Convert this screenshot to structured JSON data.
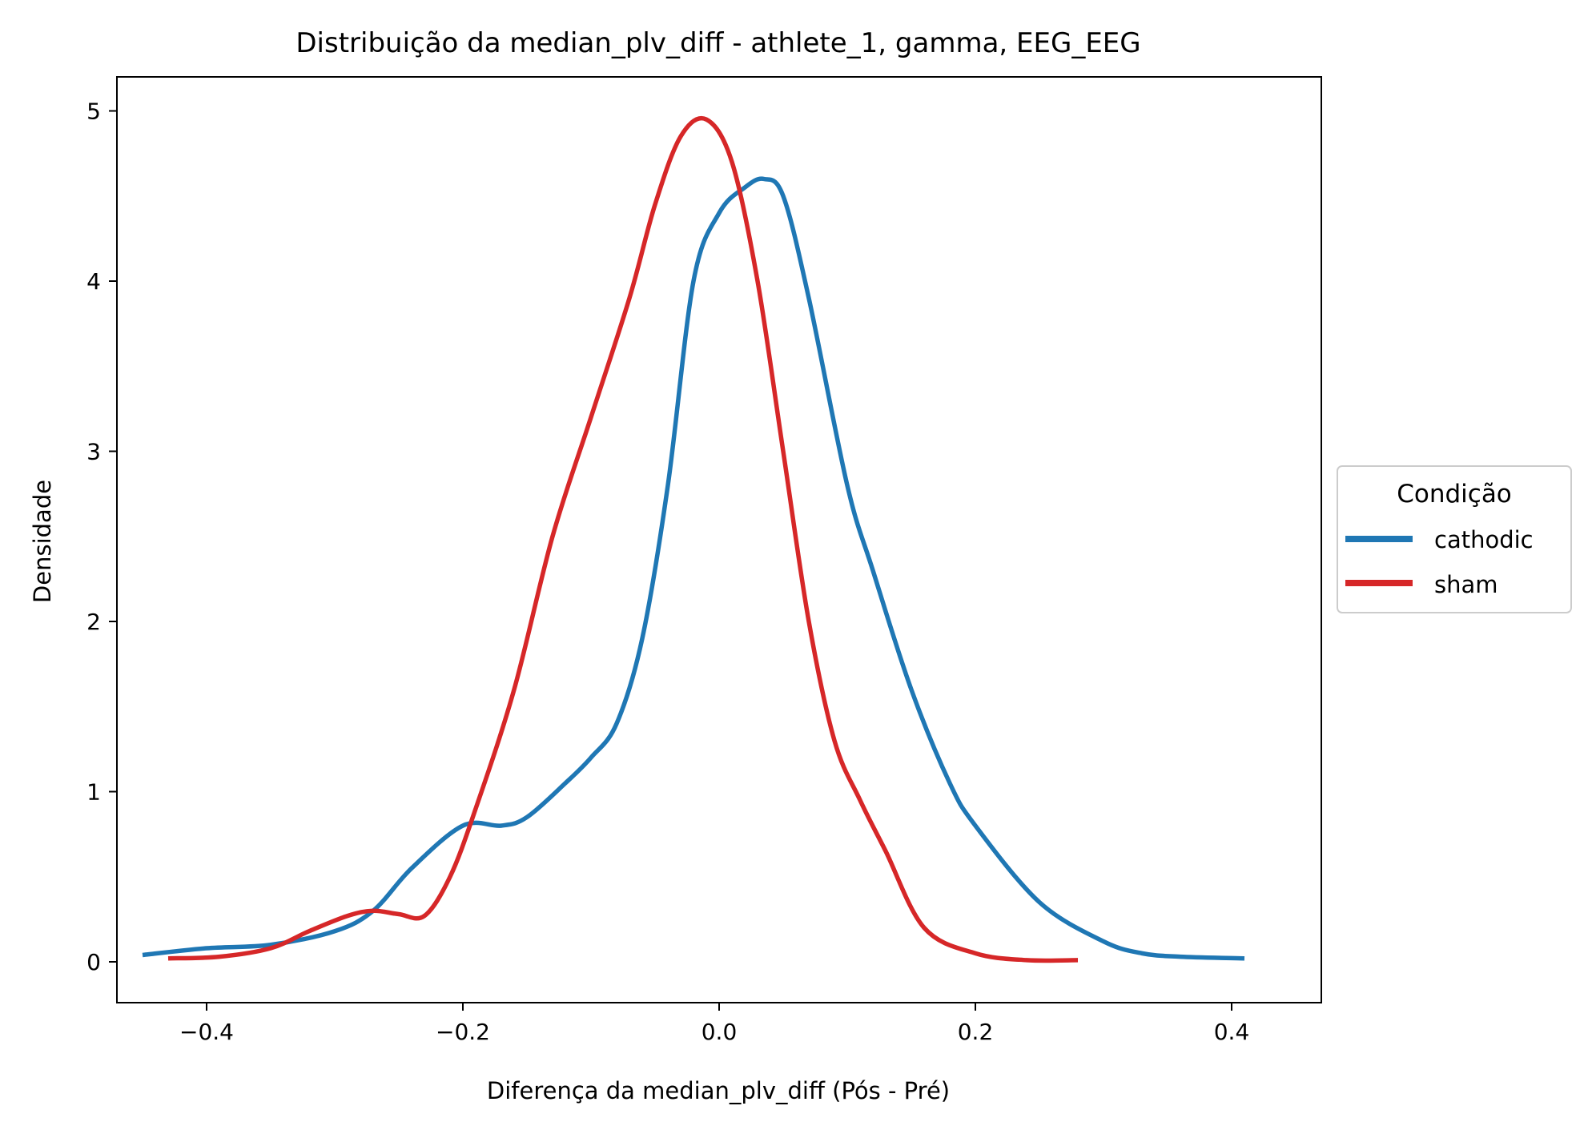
{
  "chart_data": {
    "type": "line",
    "title": "Distribuição da median_plv_diff - athlete_1, gamma, EEG_EEG",
    "xlabel": "Diferença da median_plv_diff (Pós - Pré)",
    "ylabel": "Densidade",
    "xlim": [
      -0.47,
      0.47
    ],
    "ylim": [
      -0.24,
      5.2
    ],
    "xticks": [
      -0.4,
      -0.2,
      0.0,
      0.2,
      0.4
    ],
    "xtick_labels": [
      "−0.4",
      "−0.2",
      "0.0",
      "0.2",
      "0.4"
    ],
    "yticks": [
      0,
      1,
      2,
      3,
      4,
      5
    ],
    "ytick_labels": [
      "0",
      "1",
      "2",
      "3",
      "4",
      "5"
    ],
    "grid": false,
    "legend": {
      "title": "Condição",
      "placement": "center-right-outside"
    },
    "series": [
      {
        "name": "cathodic",
        "color": "#1f77b4",
        "x": [
          -0.45,
          -0.4,
          -0.35,
          -0.3,
          -0.27,
          -0.24,
          -0.2,
          -0.17,
          -0.15,
          -0.12,
          -0.1,
          -0.08,
          -0.06,
          -0.04,
          -0.02,
          0.0,
          0.02,
          0.035,
          0.05,
          0.07,
          0.1,
          0.12,
          0.15,
          0.18,
          0.2,
          0.25,
          0.3,
          0.33,
          0.36,
          0.41
        ],
        "y": [
          0.04,
          0.08,
          0.1,
          0.18,
          0.3,
          0.55,
          0.8,
          0.8,
          0.85,
          1.05,
          1.2,
          1.4,
          1.9,
          2.8,
          4.0,
          4.4,
          4.55,
          4.6,
          4.5,
          3.9,
          2.8,
          2.3,
          1.6,
          1.05,
          0.8,
          0.35,
          0.12,
          0.05,
          0.03,
          0.02
        ]
      },
      {
        "name": "sham",
        "color": "#d62728",
        "x": [
          -0.43,
          -0.39,
          -0.35,
          -0.32,
          -0.29,
          -0.27,
          -0.25,
          -0.23,
          -0.21,
          -0.19,
          -0.16,
          -0.13,
          -0.1,
          -0.07,
          -0.05,
          -0.03,
          -0.01,
          0.01,
          0.03,
          0.05,
          0.07,
          0.09,
          0.11,
          0.13,
          0.16,
          0.2,
          0.24,
          0.28
        ],
        "y": [
          0.02,
          0.03,
          0.08,
          0.18,
          0.27,
          0.3,
          0.28,
          0.27,
          0.5,
          0.9,
          1.6,
          2.5,
          3.2,
          3.9,
          4.45,
          4.85,
          4.95,
          4.7,
          4.0,
          3.0,
          2.0,
          1.3,
          0.95,
          0.65,
          0.2,
          0.05,
          0.01,
          0.01
        ]
      }
    ]
  }
}
